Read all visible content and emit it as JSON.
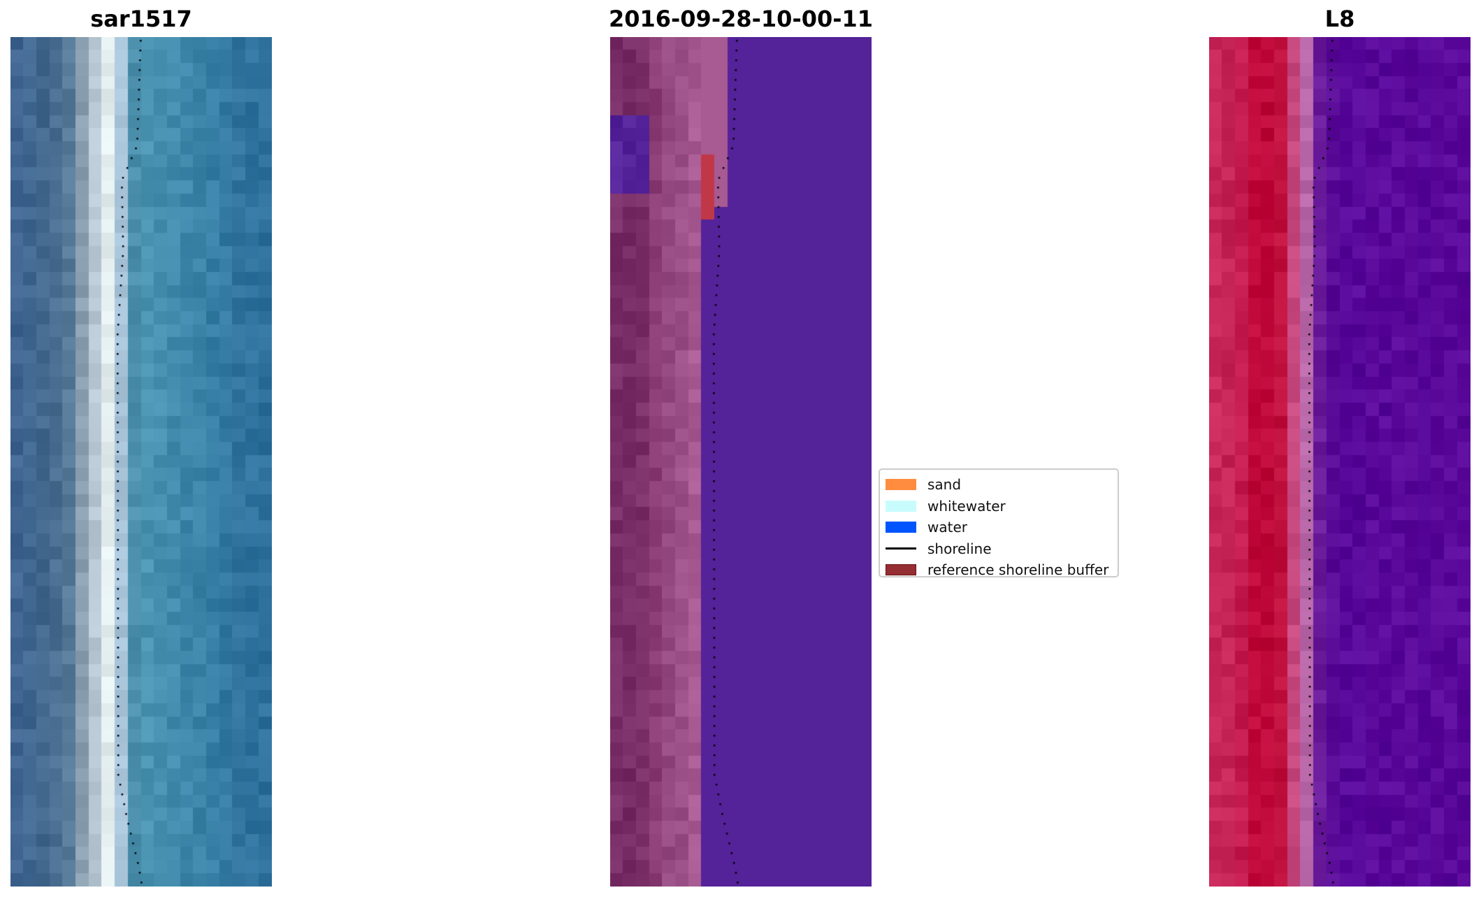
{
  "panels": [
    {
      "title": "sar1517"
    },
    {
      "title": "2016-09-28-10-00-11"
    },
    {
      "title": "L8"
    }
  ],
  "legend": {
    "items": [
      {
        "label": "sand",
        "color": "#ff8c3f",
        "type": "patch"
      },
      {
        "label": "whitewater",
        "color": "#c8fcfc",
        "type": "patch"
      },
      {
        "label": "water",
        "color": "#0055ff",
        "type": "patch"
      },
      {
        "label": "shoreline",
        "color": "#000000",
        "type": "line"
      },
      {
        "label": "reference shoreline buffer",
        "color": "#952f33",
        "type": "patch"
      }
    ]
  }
}
